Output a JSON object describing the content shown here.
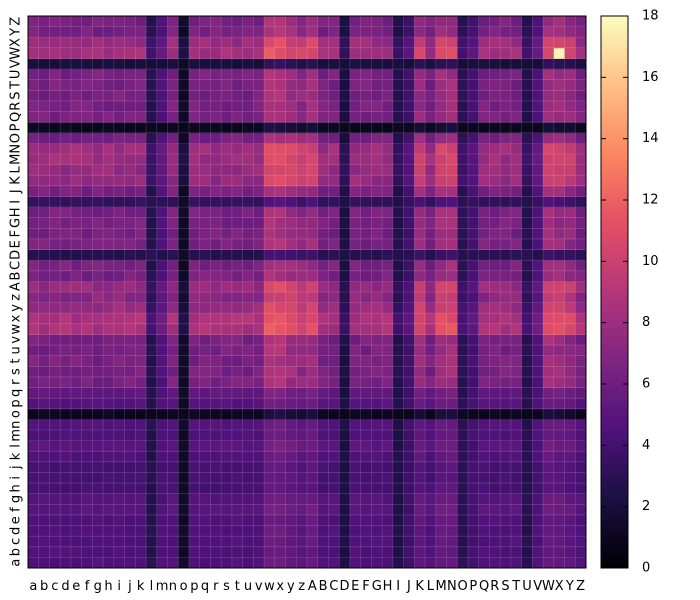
{
  "chart_data": {
    "type": "heatmap",
    "x_labels": [
      "a",
      "b",
      "c",
      "d",
      "e",
      "f",
      "g",
      "h",
      "i",
      "j",
      "k",
      "l",
      "m",
      "n",
      "o",
      "p",
      "q",
      "r",
      "s",
      "t",
      "u",
      "v",
      "w",
      "x",
      "y",
      "z",
      "A",
      "B",
      "C",
      "D",
      "E",
      "F",
      "G",
      "H",
      "I",
      "J",
      "K",
      "L",
      "M",
      "N",
      "O",
      "P",
      "Q",
      "R",
      "S",
      "T",
      "U",
      "V",
      "W",
      "X",
      "Y",
      "Z"
    ],
    "y_labels": [
      "a",
      "b",
      "c",
      "d",
      "e",
      "f",
      "g",
      "h",
      "i",
      "j",
      "k",
      "l",
      "m",
      "n",
      "o",
      "p",
      "q",
      "r",
      "s",
      "t",
      "u",
      "v",
      "w",
      "x",
      "y",
      "z",
      "A",
      "B",
      "C",
      "D",
      "E",
      "F",
      "G",
      "H",
      "I",
      "J",
      "K",
      "L",
      "M",
      "N",
      "O",
      "P",
      "Q",
      "R",
      "S",
      "T",
      "U",
      "V",
      "W",
      "X",
      "Y",
      "Z"
    ],
    "colorbar": {
      "min": 0,
      "max": 18,
      "ticks": [
        0,
        2,
        4,
        6,
        8,
        10,
        12,
        14,
        16,
        18
      ],
      "colormap": "magma"
    },
    "grid": true,
    "model": {
      "base": 6.4,
      "dark_rows": {
        "o": 0.8,
        "P": 0.8,
        "D": 2.6,
        "I": 3.1,
        "V": 1.9,
        "a": 4.3,
        "b": 4.3,
        "c": 4.3,
        "d": 4.3,
        "e": 4.3,
        "f": 4.8,
        "g": 4.6,
        "h": 3.9,
        "i": 3.9,
        "j": 3.9,
        "k": 4.3,
        "l": 4.8,
        "m": 4.3,
        "n": 4.5,
        "p": 4.6,
        "q": 5.1
      },
      "dark_cols": {
        "o": 1.2,
        "l": 2.6,
        "m": 4.3,
        "D": 2.1,
        "I": 2.4,
        "J": 3.6,
        "O": 2.8,
        "P": 3.8,
        "U": 2.6,
        "V": 4.3
      },
      "hot_rows": {
        "w": 2.2,
        "x": 2.2,
        "y": 1.4,
        "z": 0.8,
        "A": 1.2,
        "K": 1.2,
        "L": 1.2,
        "M": 1.6,
        "N": 1.5,
        "W": 1.8,
        "X": 1.4
      },
      "hot_cols": {
        "w": 2.2,
        "x": 2.2,
        "y": 1.6,
        "z": 1.0,
        "A": 1.6,
        "K": 1.2,
        "M": 1.6,
        "N": 1.6,
        "W": 1.6,
        "X": 1.4,
        "Y": 1.0
      },
      "peak": {
        "x": "X",
        "y": "W",
        "value": 17.6
      }
    }
  }
}
